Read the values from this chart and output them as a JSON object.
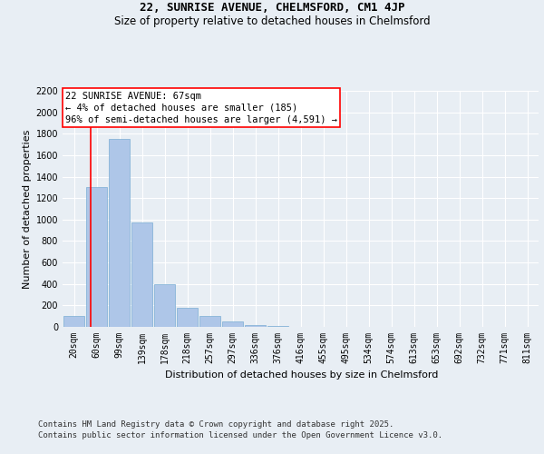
{
  "title_line1": "22, SUNRISE AVENUE, CHELMSFORD, CM1 4JP",
  "title_line2": "Size of property relative to detached houses in Chelmsford",
  "xlabel": "Distribution of detached houses by size in Chelmsford",
  "ylabel": "Number of detached properties",
  "footer_line1": "Contains HM Land Registry data © Crown copyright and database right 2025.",
  "footer_line2": "Contains public sector information licensed under the Open Government Licence v3.0.",
  "bar_labels": [
    "20sqm",
    "60sqm",
    "99sqm",
    "139sqm",
    "178sqm",
    "218sqm",
    "257sqm",
    "297sqm",
    "336sqm",
    "376sqm",
    "416sqm",
    "455sqm",
    "495sqm",
    "534sqm",
    "574sqm",
    "613sqm",
    "653sqm",
    "692sqm",
    "732sqm",
    "771sqm",
    "811sqm"
  ],
  "bar_values": [
    100,
    1300,
    1750,
    975,
    400,
    175,
    100,
    50,
    20,
    5,
    2,
    1,
    0,
    0,
    0,
    0,
    0,
    0,
    0,
    0,
    0
  ],
  "bar_color": "#aec6e8",
  "bar_edge_color": "#7aadd4",
  "ylim": [
    0,
    2200
  ],
  "yticks": [
    0,
    200,
    400,
    600,
    800,
    1000,
    1200,
    1400,
    1600,
    1800,
    2000,
    2200
  ],
  "annotation_box_text": "22 SUNRISE AVENUE: 67sqm\n← 4% of detached houses are smaller (185)\n96% of semi-detached houses are larger (4,591) →",
  "bg_color": "#e8eef4",
  "plot_bg_color": "#e8eef4",
  "grid_color": "#ffffff",
  "title_fontsize": 9,
  "subtitle_fontsize": 8.5,
  "axis_label_fontsize": 8,
  "tick_fontsize": 7,
  "annotation_fontsize": 7.5,
  "footer_fontsize": 6.5,
  "red_line_x": 0.73
}
